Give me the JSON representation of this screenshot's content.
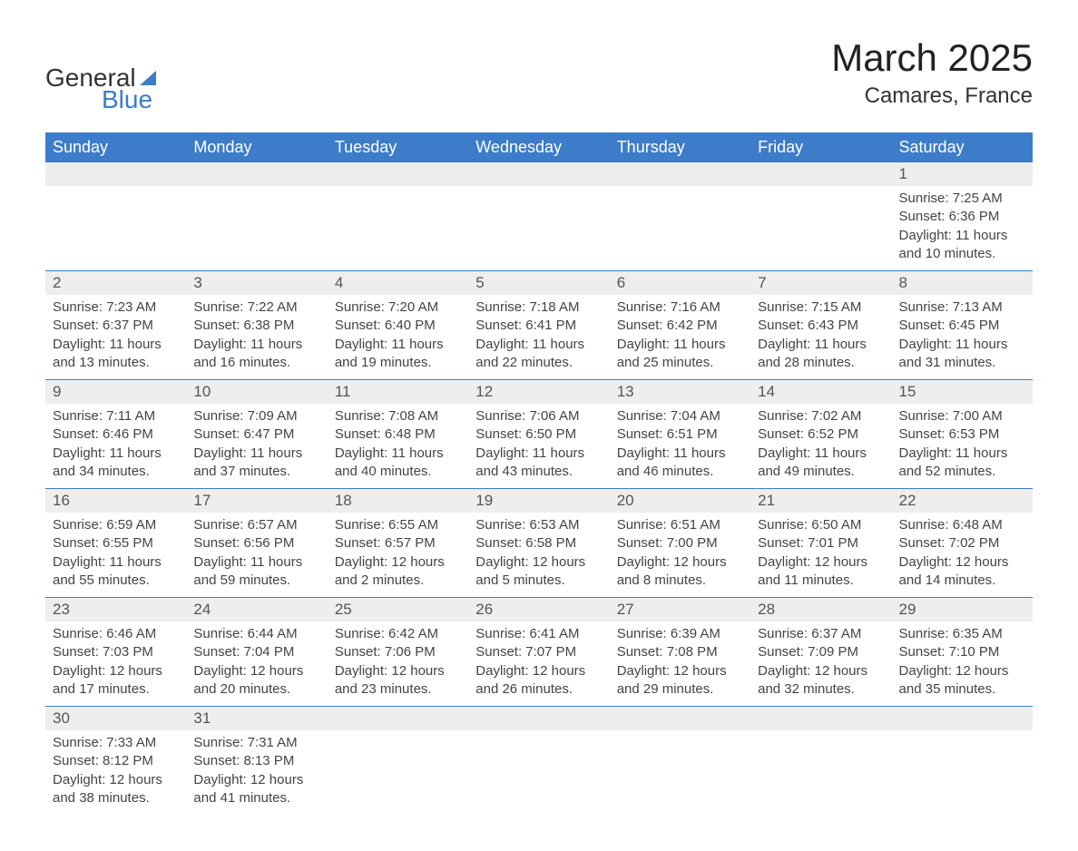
{
  "logo": {
    "text_top": "General",
    "text_bottom": "Blue"
  },
  "header": {
    "month_title": "March 2025",
    "location": "Camares, France"
  },
  "styling": {
    "header_bg": "#3d7cc9",
    "header_text": "#ffffff",
    "day_header_bg": "#eeeeee",
    "day_header_text": "#555555",
    "body_text": "#444444",
    "border_color": "#3d7cc9",
    "page_bg": "#ffffff",
    "font_family": "Arial",
    "month_title_fontsize": 42,
    "location_fontsize": 24,
    "weekday_fontsize": 18,
    "daynum_fontsize": 17,
    "content_fontsize": 15
  },
  "weekdays": [
    "Sunday",
    "Monday",
    "Tuesday",
    "Wednesday",
    "Thursday",
    "Friday",
    "Saturday"
  ],
  "weeks": [
    [
      null,
      null,
      null,
      null,
      null,
      null,
      {
        "day": "1",
        "sunrise": "Sunrise: 7:25 AM",
        "sunset": "Sunset: 6:36 PM",
        "daylight1": "Daylight: 11 hours",
        "daylight2": "and 10 minutes."
      }
    ],
    [
      {
        "day": "2",
        "sunrise": "Sunrise: 7:23 AM",
        "sunset": "Sunset: 6:37 PM",
        "daylight1": "Daylight: 11 hours",
        "daylight2": "and 13 minutes."
      },
      {
        "day": "3",
        "sunrise": "Sunrise: 7:22 AM",
        "sunset": "Sunset: 6:38 PM",
        "daylight1": "Daylight: 11 hours",
        "daylight2": "and 16 minutes."
      },
      {
        "day": "4",
        "sunrise": "Sunrise: 7:20 AM",
        "sunset": "Sunset: 6:40 PM",
        "daylight1": "Daylight: 11 hours",
        "daylight2": "and 19 minutes."
      },
      {
        "day": "5",
        "sunrise": "Sunrise: 7:18 AM",
        "sunset": "Sunset: 6:41 PM",
        "daylight1": "Daylight: 11 hours",
        "daylight2": "and 22 minutes."
      },
      {
        "day": "6",
        "sunrise": "Sunrise: 7:16 AM",
        "sunset": "Sunset: 6:42 PM",
        "daylight1": "Daylight: 11 hours",
        "daylight2": "and 25 minutes."
      },
      {
        "day": "7",
        "sunrise": "Sunrise: 7:15 AM",
        "sunset": "Sunset: 6:43 PM",
        "daylight1": "Daylight: 11 hours",
        "daylight2": "and 28 minutes."
      },
      {
        "day": "8",
        "sunrise": "Sunrise: 7:13 AM",
        "sunset": "Sunset: 6:45 PM",
        "daylight1": "Daylight: 11 hours",
        "daylight2": "and 31 minutes."
      }
    ],
    [
      {
        "day": "9",
        "sunrise": "Sunrise: 7:11 AM",
        "sunset": "Sunset: 6:46 PM",
        "daylight1": "Daylight: 11 hours",
        "daylight2": "and 34 minutes."
      },
      {
        "day": "10",
        "sunrise": "Sunrise: 7:09 AM",
        "sunset": "Sunset: 6:47 PM",
        "daylight1": "Daylight: 11 hours",
        "daylight2": "and 37 minutes."
      },
      {
        "day": "11",
        "sunrise": "Sunrise: 7:08 AM",
        "sunset": "Sunset: 6:48 PM",
        "daylight1": "Daylight: 11 hours",
        "daylight2": "and 40 minutes."
      },
      {
        "day": "12",
        "sunrise": "Sunrise: 7:06 AM",
        "sunset": "Sunset: 6:50 PM",
        "daylight1": "Daylight: 11 hours",
        "daylight2": "and 43 minutes."
      },
      {
        "day": "13",
        "sunrise": "Sunrise: 7:04 AM",
        "sunset": "Sunset: 6:51 PM",
        "daylight1": "Daylight: 11 hours",
        "daylight2": "and 46 minutes."
      },
      {
        "day": "14",
        "sunrise": "Sunrise: 7:02 AM",
        "sunset": "Sunset: 6:52 PM",
        "daylight1": "Daylight: 11 hours",
        "daylight2": "and 49 minutes."
      },
      {
        "day": "15",
        "sunrise": "Sunrise: 7:00 AM",
        "sunset": "Sunset: 6:53 PM",
        "daylight1": "Daylight: 11 hours",
        "daylight2": "and 52 minutes."
      }
    ],
    [
      {
        "day": "16",
        "sunrise": "Sunrise: 6:59 AM",
        "sunset": "Sunset: 6:55 PM",
        "daylight1": "Daylight: 11 hours",
        "daylight2": "and 55 minutes."
      },
      {
        "day": "17",
        "sunrise": "Sunrise: 6:57 AM",
        "sunset": "Sunset: 6:56 PM",
        "daylight1": "Daylight: 11 hours",
        "daylight2": "and 59 minutes."
      },
      {
        "day": "18",
        "sunrise": "Sunrise: 6:55 AM",
        "sunset": "Sunset: 6:57 PM",
        "daylight1": "Daylight: 12 hours",
        "daylight2": "and 2 minutes."
      },
      {
        "day": "19",
        "sunrise": "Sunrise: 6:53 AM",
        "sunset": "Sunset: 6:58 PM",
        "daylight1": "Daylight: 12 hours",
        "daylight2": "and 5 minutes."
      },
      {
        "day": "20",
        "sunrise": "Sunrise: 6:51 AM",
        "sunset": "Sunset: 7:00 PM",
        "daylight1": "Daylight: 12 hours",
        "daylight2": "and 8 minutes."
      },
      {
        "day": "21",
        "sunrise": "Sunrise: 6:50 AM",
        "sunset": "Sunset: 7:01 PM",
        "daylight1": "Daylight: 12 hours",
        "daylight2": "and 11 minutes."
      },
      {
        "day": "22",
        "sunrise": "Sunrise: 6:48 AM",
        "sunset": "Sunset: 7:02 PM",
        "daylight1": "Daylight: 12 hours",
        "daylight2": "and 14 minutes."
      }
    ],
    [
      {
        "day": "23",
        "sunrise": "Sunrise: 6:46 AM",
        "sunset": "Sunset: 7:03 PM",
        "daylight1": "Daylight: 12 hours",
        "daylight2": "and 17 minutes."
      },
      {
        "day": "24",
        "sunrise": "Sunrise: 6:44 AM",
        "sunset": "Sunset: 7:04 PM",
        "daylight1": "Daylight: 12 hours",
        "daylight2": "and 20 minutes."
      },
      {
        "day": "25",
        "sunrise": "Sunrise: 6:42 AM",
        "sunset": "Sunset: 7:06 PM",
        "daylight1": "Daylight: 12 hours",
        "daylight2": "and 23 minutes."
      },
      {
        "day": "26",
        "sunrise": "Sunrise: 6:41 AM",
        "sunset": "Sunset: 7:07 PM",
        "daylight1": "Daylight: 12 hours",
        "daylight2": "and 26 minutes."
      },
      {
        "day": "27",
        "sunrise": "Sunrise: 6:39 AM",
        "sunset": "Sunset: 7:08 PM",
        "daylight1": "Daylight: 12 hours",
        "daylight2": "and 29 minutes."
      },
      {
        "day": "28",
        "sunrise": "Sunrise: 6:37 AM",
        "sunset": "Sunset: 7:09 PM",
        "daylight1": "Daylight: 12 hours",
        "daylight2": "and 32 minutes."
      },
      {
        "day": "29",
        "sunrise": "Sunrise: 6:35 AM",
        "sunset": "Sunset: 7:10 PM",
        "daylight1": "Daylight: 12 hours",
        "daylight2": "and 35 minutes."
      }
    ],
    [
      {
        "day": "30",
        "sunrise": "Sunrise: 7:33 AM",
        "sunset": "Sunset: 8:12 PM",
        "daylight1": "Daylight: 12 hours",
        "daylight2": "and 38 minutes."
      },
      {
        "day": "31",
        "sunrise": "Sunrise: 7:31 AM",
        "sunset": "Sunset: 8:13 PM",
        "daylight1": "Daylight: 12 hours",
        "daylight2": "and 41 minutes."
      },
      null,
      null,
      null,
      null,
      null
    ]
  ]
}
